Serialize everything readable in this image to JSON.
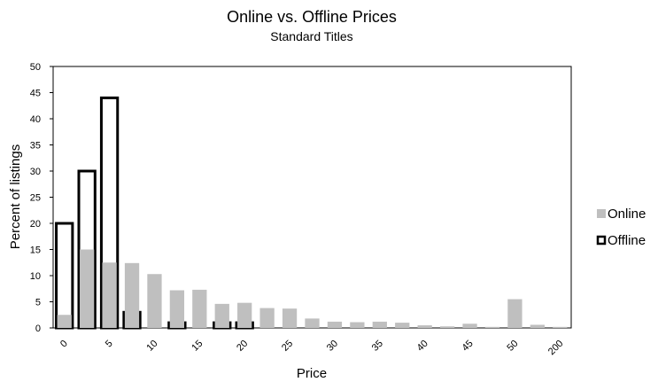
{
  "chart_data": {
    "type": "bar",
    "title": "Online vs. Offline Prices",
    "subtitle": "Standard Titles",
    "x_label": "Price",
    "y_label": "Percent of listings",
    "categories": [
      "0",
      null,
      "5",
      null,
      "10",
      null,
      "15",
      null,
      "20",
      null,
      "25",
      null,
      "30",
      null,
      "35",
      null,
      "40",
      null,
      "45",
      null,
      "50",
      null,
      "200"
    ],
    "series": [
      {
        "name": "Online",
        "color": "#bfbfbf",
        "values": [
          2.5,
          15,
          12.5,
          12.4,
          10.3,
          7.2,
          7.3,
          4.6,
          4.8,
          3.8,
          3.7,
          1.8,
          1.2,
          1.1,
          1.2,
          1.0,
          0.5,
          0.3,
          0.8,
          0.2,
          5.5,
          0.6,
          0.2
        ]
      },
      {
        "name": "Offline",
        "color": "#000000",
        "values": [
          20,
          30,
          44,
          3,
          0,
          1,
          0,
          1,
          1,
          0,
          0,
          0,
          0,
          0,
          0,
          0,
          0,
          0,
          0,
          0,
          0,
          0,
          0
        ]
      }
    ],
    "ylim": [
      0,
      50
    ],
    "yticks": [
      0,
      5,
      10,
      15,
      20,
      25,
      30,
      35,
      40,
      45,
      50
    ],
    "legend": "right"
  }
}
